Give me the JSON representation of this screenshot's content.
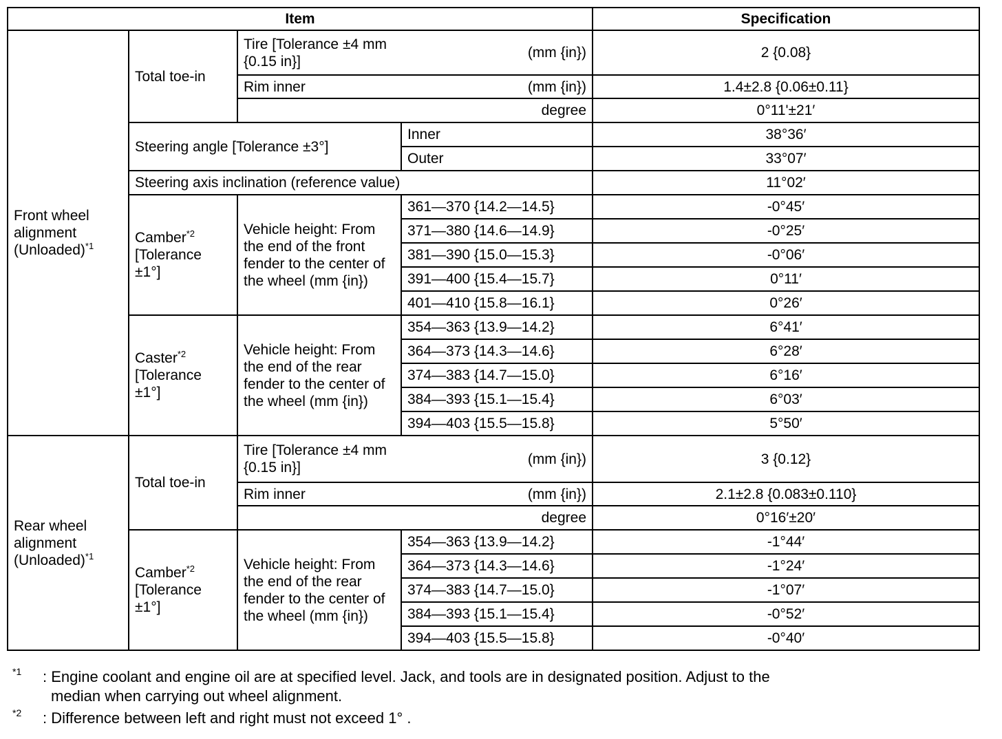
{
  "header": {
    "item": "Item",
    "specification": "Specification"
  },
  "front": {
    "group_label": "Front wheel alignment (Unloaded)",
    "group_sup": "*1",
    "toe_in": {
      "label": "Total toe-in",
      "tire_label": "Tire [Tolerance ±4 mm {0.15 in}]",
      "tire_unit": "(mm {in})",
      "tire_value": "2 {0.08}",
      "rim_label": "Rim inner",
      "rim_unit": "(mm {in})",
      "rim_value": "1.4±2.8 {0.06±0.11}",
      "degree_label": "degree",
      "degree_value": "0°11'±21′"
    },
    "steering_angle": {
      "label": "Steering angle [Tolerance ±3°]",
      "inner_label": "Inner",
      "inner_value": "38°36′",
      "outer_label": "Outer",
      "outer_value": "33°07′"
    },
    "sai": {
      "label": "Steering axis inclination (reference value)",
      "value": "11°02′"
    },
    "camber": {
      "label": "Camber",
      "sup": "*2",
      "tolerance": "[Tolerance ±1°]",
      "height_desc": "Vehicle height: From the end of the front fender to the center of the wheel (mm {in})",
      "rows": [
        {
          "range": "361—370 {14.2—14.5}",
          "value": "-0°45′"
        },
        {
          "range": "371—380 {14.6—14.9}",
          "value": "-0°25′"
        },
        {
          "range": "381—390 {15.0—15.3}",
          "value": "-0°06′"
        },
        {
          "range": "391—400 {15.4—15.7}",
          "value": "0°11′"
        },
        {
          "range": "401—410 {15.8—16.1}",
          "value": "0°26′"
        }
      ]
    },
    "caster": {
      "label": "Caster",
      "sup": "*2",
      "tolerance": "[Tolerance ±1°]",
      "height_desc": "Vehicle height: From the end of the rear fender to the center of the wheel (mm {in})",
      "rows": [
        {
          "range": "354—363 {13.9—14.2}",
          "value": "6°41′"
        },
        {
          "range": "364—373 {14.3—14.6}",
          "value": "6°28′"
        },
        {
          "range": "374—383 {14.7—15.0}",
          "value": "6°16′"
        },
        {
          "range": "384—393 {15.1—15.4}",
          "value": "6°03′"
        },
        {
          "range": "394—403 {15.5—15.8}",
          "value": "5°50′"
        }
      ]
    }
  },
  "rear": {
    "group_label": "Rear wheel alignment (Unloaded)",
    "group_sup": "*1",
    "toe_in": {
      "label": "Total toe-in",
      "tire_label": "Tire [Tolerance ±4 mm {0.15 in}]",
      "tire_unit": "(mm {in})",
      "tire_value": "3 {0.12}",
      "rim_label": "Rim inner",
      "rim_unit": "(mm {in})",
      "rim_value": "2.1±2.8 {0.083±0.110}",
      "degree_label": "degree",
      "degree_value": "0°16′±20′"
    },
    "camber": {
      "label": "Camber",
      "sup": "*2",
      "tolerance": "[Tolerance ±1°]",
      "height_desc": "Vehicle height: From the end of the rear fender to the center of the wheel (mm {in})",
      "rows": [
        {
          "range": "354—363 {13.9—14.2}",
          "value": "-1°44′"
        },
        {
          "range": "364—373 {14.3—14.6}",
          "value": "-1°24′"
        },
        {
          "range": "374—383 {14.7—15.0}",
          "value": "-1°07′"
        },
        {
          "range": "384—393 {15.1—15.4}",
          "value": "-0°52′"
        },
        {
          "range": "394—403 {15.5—15.8}",
          "value": "-0°40′"
        }
      ]
    }
  },
  "footnotes": [
    {
      "mark": "*1",
      "text": ": Engine coolant and engine oil are at specified level. Jack, and tools are in designated position. Adjust to the",
      "text2": "median when carrying out wheel alignment."
    },
    {
      "mark": "*2",
      "text": ": Difference between left and right must not exceed 1° ."
    }
  ]
}
